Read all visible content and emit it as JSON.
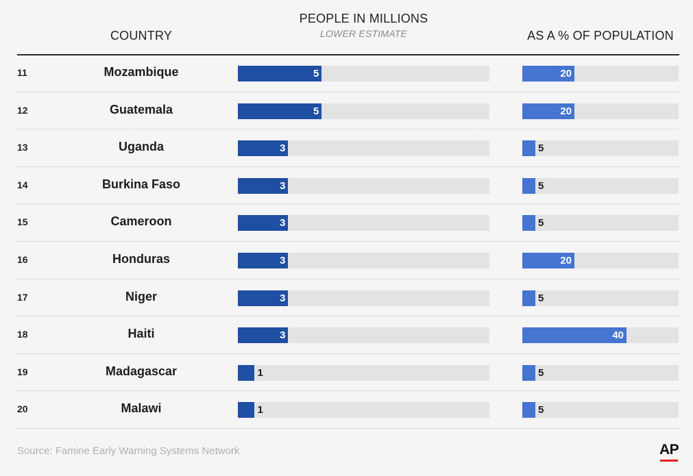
{
  "headers": {
    "country": "COUNTRY",
    "people": "PEOPLE IN MILLIONS",
    "people_sub": "LOWER ESTIMATE",
    "pct": "AS A % OF POPULATION"
  },
  "source": "Source: Famine Early Warning Systems Network",
  "logo": "AP",
  "colors": {
    "people_bar": "#1f4fa3",
    "pct_bar": "#4574d1",
    "track": "#e3e3e3",
    "logo_accent": "#e2231a"
  },
  "chart_data": {
    "type": "bar",
    "orientation": "horizontal",
    "categories": [
      "Mozambique",
      "Guatemala",
      "Uganda",
      "Burkina Faso",
      "Cameroon",
      "Honduras",
      "Niger",
      "Haiti",
      "Madagascar",
      "Malawi"
    ],
    "ranks": [
      "11",
      "12",
      "13",
      "14",
      "15",
      "16",
      "17",
      "18",
      "19",
      "20"
    ],
    "series": [
      {
        "name": "PEOPLE IN MILLIONS",
        "values": [
          5,
          5,
          3,
          3,
          3,
          3,
          3,
          3,
          1,
          1
        ],
        "xlim": [
          0,
          15
        ]
      },
      {
        "name": "AS A % OF POPULATION",
        "values": [
          20,
          20,
          5,
          5,
          5,
          20,
          5,
          40,
          5,
          5
        ],
        "xlim": [
          0,
          60
        ]
      }
    ]
  }
}
